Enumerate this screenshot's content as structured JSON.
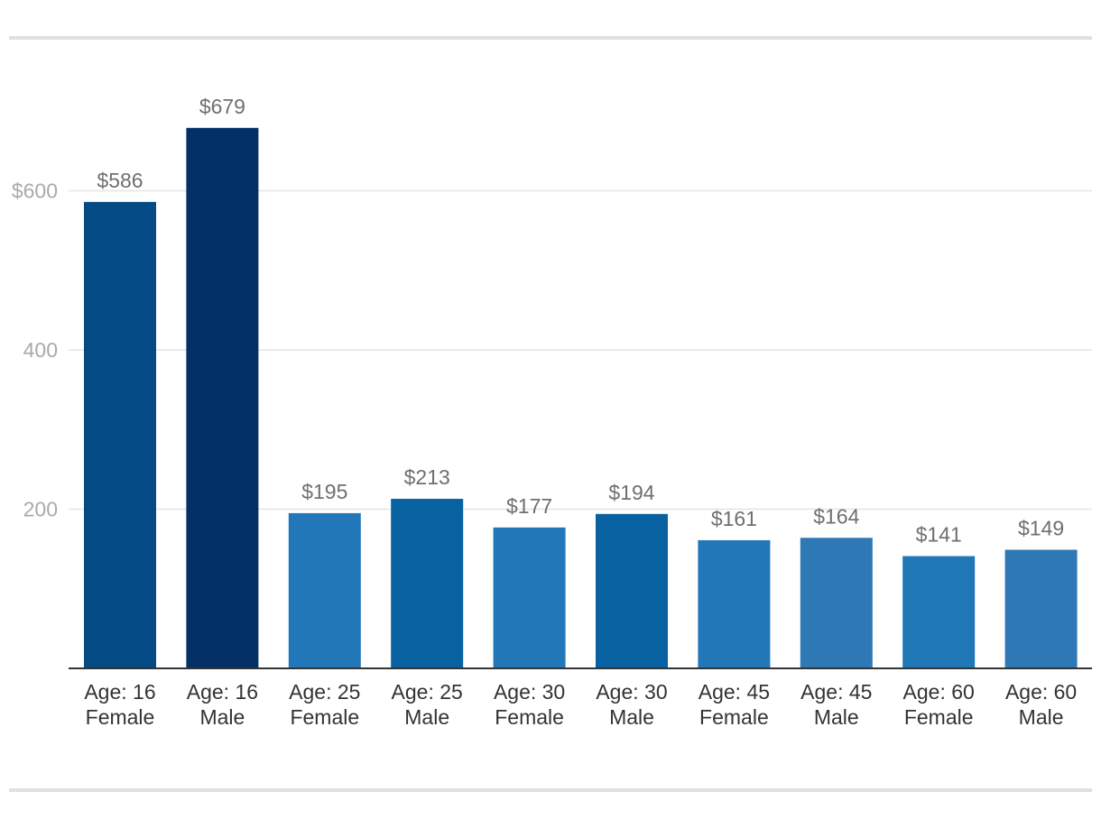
{
  "chart_data": {
    "type": "bar",
    "title": "",
    "xlabel": "",
    "ylabel": "",
    "ylim": [
      0,
      700
    ],
    "yticks": [
      200,
      400,
      600
    ],
    "ytick_labels": [
      "200",
      "400",
      "$600"
    ],
    "grid": true,
    "categories": [
      [
        "Age: 16",
        "Female"
      ],
      [
        "Age: 16",
        "Male"
      ],
      [
        "Age: 25",
        "Female"
      ],
      [
        "Age: 25",
        "Male"
      ],
      [
        "Age: 30",
        "Female"
      ],
      [
        "Age: 30",
        "Male"
      ],
      [
        "Age: 45",
        "Female"
      ],
      [
        "Age: 45",
        "Male"
      ],
      [
        "Age: 60",
        "Female"
      ],
      [
        "Age: 60",
        "Male"
      ]
    ],
    "values": [
      586,
      679,
      195,
      213,
      177,
      194,
      161,
      164,
      141,
      149
    ],
    "data_labels": [
      "$586",
      "$679",
      "$195",
      "$213",
      "$177",
      "$194",
      "$161",
      "$164",
      "$141",
      "$149"
    ],
    "colors": [
      "#044a84",
      "#033066",
      "#2277b8",
      "#0862a2",
      "#2277b8",
      "#0862a2",
      "#2277b8",
      "#2f78b6",
      "#1f77b6",
      "#2f78b6"
    ]
  }
}
